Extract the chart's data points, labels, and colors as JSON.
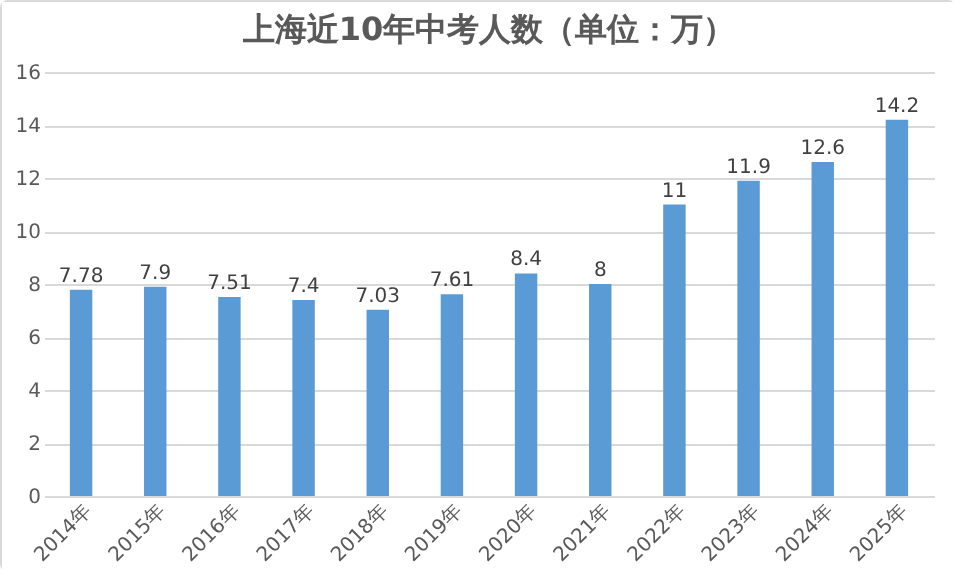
{
  "chart_data": {
    "type": "bar",
    "title": "上海近10年中考人数（单位：万）",
    "categories": [
      "2014年",
      "2015年",
      "2016年",
      "2017年",
      "2018年",
      "2019年",
      "2020年",
      "2021年",
      "2022年",
      "2023年",
      "2024年",
      "2025年"
    ],
    "values": [
      7.78,
      7.9,
      7.51,
      7.4,
      7.03,
      7.61,
      8.4,
      8,
      11,
      11.9,
      12.6,
      14.2
    ],
    "color": "#5b9bd5",
    "ylim": [
      0,
      16
    ],
    "yticks": [
      0,
      2,
      4,
      6,
      8,
      10,
      12,
      14,
      16
    ],
    "grid": "y",
    "data_labels": true
  }
}
